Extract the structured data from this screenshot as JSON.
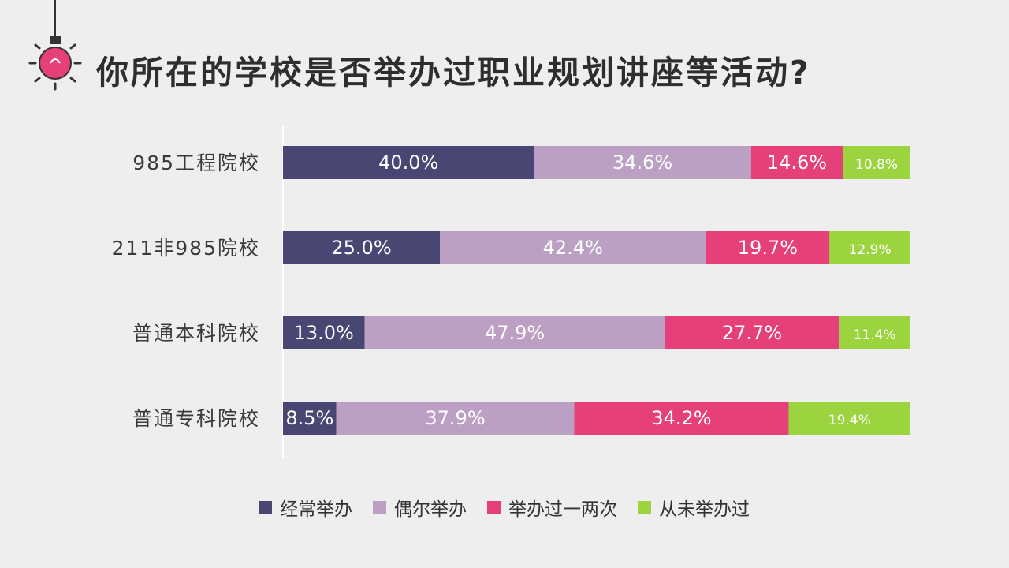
{
  "title": "你所在的学校是否举办过职业规划讲座等活动?",
  "chart_data": {
    "type": "bar",
    "orientation": "horizontal",
    "stacked": true,
    "normalized": true,
    "categories": [
      "985工程院校",
      "211非985院校",
      "普通本科院校",
      "普通专科院校"
    ],
    "series": [
      {
        "name": "经常举办",
        "color": "#4a4674",
        "values": [
          40.0,
          25.0,
          13.0,
          8.5
        ],
        "labels": [
          "40.0%",
          "25.0%",
          "13.0%",
          "8.5%"
        ]
      },
      {
        "name": "偶尔举办",
        "color": "#bba0c4",
        "values": [
          34.6,
          42.4,
          47.9,
          37.9
        ],
        "labels": [
          "34.6%",
          "42.4%",
          "47.9%",
          "37.9%"
        ]
      },
      {
        "name": "举办过一两次",
        "color": "#e5407a",
        "values": [
          14.6,
          19.7,
          27.7,
          34.2
        ],
        "labels": [
          "14.6%",
          "19.7%",
          "27.7%",
          "34.2%"
        ]
      },
      {
        "name": "从未举办过",
        "color": "#9bd43e",
        "values": [
          10.8,
          12.9,
          11.4,
          19.4
        ],
        "labels": [
          "10.8%",
          "12.9%",
          "11.4%",
          "19.4%"
        ]
      }
    ],
    "xlim": [
      0,
      100
    ],
    "legend_position": "bottom",
    "grid": false
  }
}
